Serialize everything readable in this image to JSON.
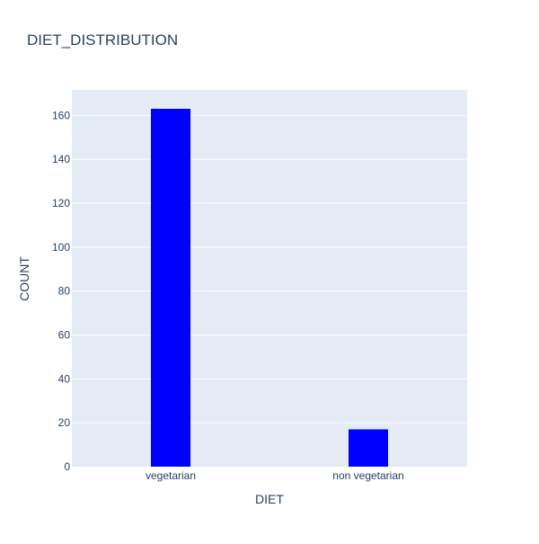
{
  "chart_data": {
    "type": "bar",
    "title": "DIET_DISTRIBUTION",
    "xlabel": "DIET",
    "ylabel": "COUNT",
    "categories": [
      "vegetarian",
      "non vegetarian"
    ],
    "values": [
      163,
      17
    ],
    "ylim": [
      0,
      171.6
    ],
    "yticks": [
      0,
      20,
      40,
      60,
      80,
      100,
      120,
      140,
      160
    ],
    "grid": true,
    "legend": "none",
    "colors": {
      "bar": "#0000ff",
      "plot_background": "#e5ecf6",
      "gridline": "#ffffff",
      "text": "#2a3f5f",
      "page_background": "#ffffff"
    }
  }
}
